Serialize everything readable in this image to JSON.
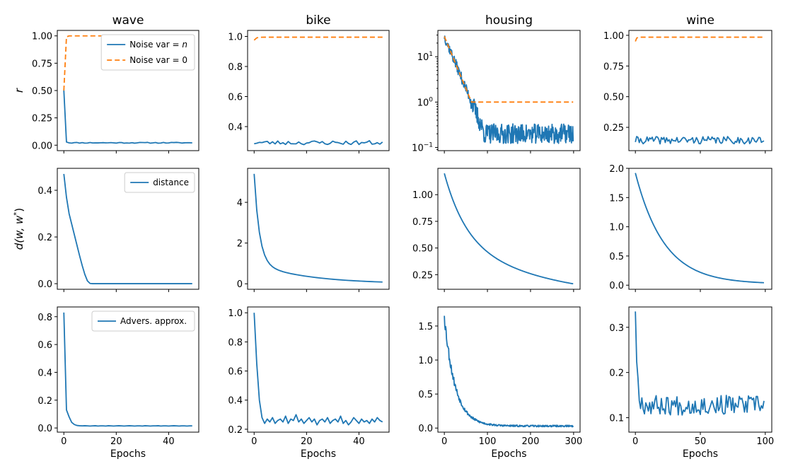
{
  "figure": {
    "xlabel": "Epochs",
    "row_ylabels": [
      "r",
      "d(w, w*)",
      ""
    ],
    "colors": {
      "blue": "#1f77b4",
      "orange": "#ff7f0e"
    }
  },
  "chart_data": [
    {
      "type": "line",
      "row": 0,
      "col": 0,
      "title": "wave",
      "ylabel": "r",
      "xlabel": "",
      "xlim": [
        -2.5,
        51.5
      ],
      "ylim": [
        -0.05,
        1.05
      ],
      "yscale": "linear",
      "xticks": [
        0,
        20,
        40
      ],
      "xtick_labels": [],
      "yticks": [
        0.0,
        0.25,
        0.5,
        0.75,
        1.0
      ],
      "ytick_labels": [
        "0.00",
        "0.25",
        "0.50",
        "0.75",
        "1.00"
      ],
      "legend": {
        "position": "top-right",
        "entries": [
          {
            "label": "Noise var = n",
            "series": 0
          },
          {
            "label": "Noise var = 0",
            "series": 1
          }
        ]
      },
      "series": [
        {
          "name": "Noise var = n",
          "color": "blue",
          "style": "solid",
          "gen": {
            "kind": "decay_noise",
            "n": 50,
            "y0": 0.5,
            "floor": 0.022,
            "k": 4.0,
            "noise": 0.004,
            "seed": 11
          }
        },
        {
          "name": "Noise var = 0",
          "color": "orange",
          "style": "dashed",
          "gen": {
            "kind": "rise",
            "n": 50,
            "y0": 0.5,
            "target": 1.0,
            "k": 4.0
          }
        }
      ]
    },
    {
      "type": "line",
      "row": 0,
      "col": 1,
      "title": "bike",
      "ylabel": "",
      "xlabel": "",
      "xlim": [
        -2.5,
        51.5
      ],
      "ylim": [
        0.24,
        1.04
      ],
      "yscale": "linear",
      "xticks": [
        0,
        20,
        40
      ],
      "xtick_labels": [],
      "yticks": [
        0.4,
        0.6,
        0.8,
        1.0
      ],
      "ytick_labels": [
        "0.4",
        "0.6",
        "0.8",
        "1.0"
      ],
      "series": [
        {
          "name": "Noise var = n",
          "color": "blue",
          "style": "solid",
          "gen": {
            "kind": "noise",
            "n": 50,
            "base": 0.293,
            "noise": 0.014,
            "seed": 23
          }
        },
        {
          "name": "Noise var = 0",
          "color": "orange",
          "style": "dashed",
          "gen": {
            "kind": "rise",
            "n": 50,
            "y0": 0.975,
            "target": 0.995,
            "k": 1.5
          }
        }
      ]
    },
    {
      "type": "line",
      "row": 0,
      "col": 2,
      "title": "housing",
      "ylabel": "",
      "xlabel": "",
      "xlim": [
        -15,
        315
      ],
      "ylim": [
        0.085,
        38
      ],
      "yscale": "log",
      "xticks": [
        0,
        100,
        200,
        300
      ],
      "xtick_labels": [],
      "yticks": [
        0.1,
        1,
        10
      ],
      "ytick_labels": [
        "10^-1",
        "10^0",
        "10^1"
      ],
      "series": [
        {
          "name": "Noise var = n",
          "color": "blue",
          "style": "solid",
          "gen": {
            "kind": "log_decay_noise",
            "n": 300,
            "y0": 28,
            "floor": 0.2,
            "k": 0.051,
            "noise": 0.22,
            "seed": 37
          }
        },
        {
          "name": "Noise var = 0",
          "color": "orange",
          "style": "dashed",
          "gen": {
            "kind": "log_decay_floor",
            "n": 300,
            "y0": 28,
            "floor": 1.0,
            "k": 0.051
          }
        }
      ]
    },
    {
      "type": "line",
      "row": 0,
      "col": 3,
      "title": "wine",
      "ylabel": "",
      "xlabel": "",
      "xlim": [
        -5,
        105
      ],
      "ylim": [
        0.06,
        1.04
      ],
      "yscale": "linear",
      "xticks": [
        0,
        50,
        100
      ],
      "xtick_labels": [],
      "yticks": [
        0.25,
        0.5,
        0.75,
        1.0
      ],
      "ytick_labels": [
        "0.25",
        "0.50",
        "0.75",
        "1.00"
      ],
      "series": [
        {
          "name": "Noise var = n",
          "color": "blue",
          "style": "solid",
          "gen": {
            "kind": "noise",
            "n": 100,
            "base": 0.145,
            "noise": 0.03,
            "seed": 41
          }
        },
        {
          "name": "Noise var = 0",
          "color": "orange",
          "style": "dashed",
          "gen": {
            "kind": "rise",
            "n": 100,
            "y0": 0.95,
            "target": 0.985,
            "k": 1.5
          }
        }
      ]
    },
    {
      "type": "line",
      "row": 1,
      "col": 0,
      "title": "",
      "ylabel": "d(w, w*)",
      "xlabel": "",
      "xlim": [
        -2.5,
        51.5
      ],
      "ylim": [
        -0.024,
        0.494
      ],
      "yscale": "linear",
      "xticks": [
        0,
        20,
        40
      ],
      "xtick_labels": [],
      "yticks": [
        0.0,
        0.2,
        0.4
      ],
      "ytick_labels": [
        "0.0",
        "0.2",
        "0.4"
      ],
      "legend": {
        "position": "top-right",
        "entries": [
          {
            "label": "distance",
            "series": 0
          }
        ]
      },
      "series": [
        {
          "name": "distance",
          "color": "blue",
          "style": "solid",
          "x": [
            0,
            1,
            2,
            3,
            4,
            5,
            6,
            7,
            8,
            9,
            10,
            11,
            12,
            13,
            14,
            15,
            16,
            17,
            18,
            19,
            20,
            21,
            22,
            23,
            24,
            25,
            26,
            27,
            28,
            29,
            30,
            31,
            32,
            33,
            34,
            35,
            36,
            37,
            38,
            39,
            40,
            41,
            42,
            43,
            44,
            45,
            46,
            47,
            48,
            49
          ],
          "y": [
            0.47,
            0.37,
            0.3,
            0.255,
            0.21,
            0.165,
            0.12,
            0.078,
            0.04,
            0.012,
            0.001,
            0,
            0,
            0,
            0,
            0,
            0,
            0,
            0,
            0,
            0,
            0,
            0,
            0,
            0,
            0,
            0,
            0,
            0,
            0,
            0,
            0,
            0,
            0,
            0,
            0,
            0,
            0,
            0,
            0,
            0,
            0,
            0,
            0,
            0,
            0,
            0,
            0,
            0,
            0
          ]
        }
      ]
    },
    {
      "type": "line",
      "row": 1,
      "col": 1,
      "title": "",
      "ylabel": "",
      "xlabel": "",
      "xlim": [
        -2.5,
        51.5
      ],
      "ylim": [
        -0.27,
        5.67
      ],
      "yscale": "linear",
      "xticks": [
        0,
        20,
        40
      ],
      "xtick_labels": [],
      "yticks": [
        0,
        2,
        4
      ],
      "ytick_labels": [
        "0",
        "2",
        "4"
      ],
      "series": [
        {
          "name": "distance",
          "color": "blue",
          "style": "solid",
          "gen": {
            "kind": "two_exp",
            "n": 50,
            "a": 4.4,
            "k1": 0.5,
            "b": 1.0,
            "k2": 0.05
          }
        }
      ]
    },
    {
      "type": "line",
      "row": 1,
      "col": 2,
      "title": "",
      "ylabel": "",
      "xlabel": "",
      "xlim": [
        -15,
        315
      ],
      "ylim": [
        0.113,
        1.247
      ],
      "yscale": "linear",
      "xticks": [
        0,
        100,
        200,
        300
      ],
      "xtick_labels": [],
      "yticks": [
        0.25,
        0.5,
        0.75,
        1.0
      ],
      "ytick_labels": [
        "0.25",
        "0.50",
        "0.75",
        "1.00"
      ],
      "series": [
        {
          "name": "distance",
          "color": "blue",
          "style": "solid",
          "gen": {
            "kind": "two_exp",
            "n": 300,
            "a": 0.62,
            "k1": 0.02,
            "b": 0.58,
            "k2": 0.00425
          }
        }
      ]
    },
    {
      "type": "line",
      "row": 1,
      "col": 3,
      "title": "",
      "ylabel": "",
      "xlabel": "",
      "xlim": [
        -5,
        105
      ],
      "ylim": [
        -0.07,
        2.0
      ],
      "yscale": "linear",
      "xticks": [
        0,
        50,
        100
      ],
      "xtick_labels": [],
      "yticks": [
        0.0,
        0.5,
        1.0,
        1.5,
        2.0
      ],
      "ytick_labels": [
        "0.0",
        "0.5",
        "1.0",
        "1.5",
        "2.0"
      ],
      "series": [
        {
          "name": "distance",
          "color": "blue",
          "style": "solid",
          "gen": {
            "kind": "two_exp",
            "n": 100,
            "a": 1.9,
            "k1": 0.045,
            "b": 0.0,
            "k2": 0.0,
            "offset": 0.02
          }
        }
      ]
    },
    {
      "type": "line",
      "row": 2,
      "col": 0,
      "title": "",
      "ylabel": "",
      "xlabel": "Epochs",
      "xlim": [
        -2.5,
        51.5
      ],
      "ylim": [
        -0.03,
        0.87
      ],
      "yscale": "linear",
      "xticks": [
        0,
        20,
        40
      ],
      "xtick_labels": [
        "0",
        "20",
        "40"
      ],
      "yticks": [
        0.0,
        0.2,
        0.4,
        0.6,
        0.8
      ],
      "ytick_labels": [
        "0.0",
        "0.2",
        "0.4",
        "0.6",
        "0.8"
      ],
      "legend": {
        "position": "top-right",
        "entries": [
          {
            "label": "Advers. approx.",
            "series": 0
          }
        ]
      },
      "series": [
        {
          "name": "Advers. approx.",
          "color": "blue",
          "style": "solid",
          "x": [
            0,
            1,
            2,
            3,
            4,
            5,
            6,
            7,
            8,
            9,
            10,
            11,
            12,
            13,
            14,
            15,
            16,
            17,
            18,
            19,
            20,
            21,
            22,
            23,
            24,
            25,
            26,
            27,
            28,
            29,
            30,
            31,
            32,
            33,
            34,
            35,
            36,
            37,
            38,
            39,
            40,
            41,
            42,
            43,
            44,
            45,
            46,
            47,
            48,
            49
          ],
          "y": [
            0.83,
            0.13,
            0.08,
            0.04,
            0.025,
            0.018,
            0.016,
            0.015,
            0.016,
            0.015,
            0.014,
            0.015,
            0.016,
            0.014,
            0.015,
            0.015,
            0.014,
            0.016,
            0.015,
            0.014,
            0.015,
            0.016,
            0.015,
            0.014,
            0.015,
            0.016,
            0.015,
            0.014,
            0.015,
            0.015,
            0.014,
            0.016,
            0.015,
            0.014,
            0.015,
            0.015,
            0.016,
            0.014,
            0.015,
            0.015,
            0.014,
            0.015,
            0.016,
            0.015,
            0.014,
            0.015,
            0.015,
            0.014,
            0.015,
            0.015
          ]
        }
      ]
    },
    {
      "type": "line",
      "row": 2,
      "col": 1,
      "title": "",
      "ylabel": "",
      "xlabel": "Epochs",
      "xlim": [
        -2.5,
        51.5
      ],
      "ylim": [
        0.18,
        1.04
      ],
      "yscale": "linear",
      "xticks": [
        0,
        20,
        40
      ],
      "xtick_labels": [
        "0",
        "20",
        "40"
      ],
      "yticks": [
        0.2,
        0.4,
        0.6,
        0.8,
        1.0
      ],
      "ytick_labels": [
        "0.2",
        "0.4",
        "0.6",
        "0.8",
        "1.0"
      ],
      "series": [
        {
          "name": "Advers. approx.",
          "color": "blue",
          "style": "solid",
          "x": [
            0,
            1,
            2,
            3,
            4,
            5,
            6,
            7,
            8,
            9,
            10,
            11,
            12,
            13,
            14,
            15,
            16,
            17,
            18,
            19,
            20,
            21,
            22,
            23,
            24,
            25,
            26,
            27,
            28,
            29,
            30,
            31,
            32,
            33,
            34,
            35,
            36,
            37,
            38,
            39,
            40,
            41,
            42,
            43,
            44,
            45,
            46,
            47,
            48,
            49
          ],
          "y": [
            1.0,
            0.65,
            0.4,
            0.28,
            0.24,
            0.27,
            0.25,
            0.28,
            0.24,
            0.26,
            0.27,
            0.25,
            0.29,
            0.24,
            0.27,
            0.26,
            0.3,
            0.25,
            0.27,
            0.24,
            0.26,
            0.28,
            0.25,
            0.27,
            0.23,
            0.26,
            0.27,
            0.25,
            0.28,
            0.24,
            0.26,
            0.27,
            0.25,
            0.29,
            0.24,
            0.26,
            0.23,
            0.25,
            0.28,
            0.26,
            0.24,
            0.27,
            0.25,
            0.26,
            0.24,
            0.27,
            0.25,
            0.28,
            0.26,
            0.25
          ]
        }
      ]
    },
    {
      "type": "line",
      "row": 2,
      "col": 2,
      "title": "",
      "ylabel": "",
      "xlabel": "Epochs",
      "xlim": [
        -15,
        315
      ],
      "ylim": [
        -0.06,
        1.78
      ],
      "yscale": "linear",
      "xticks": [
        0,
        100,
        200,
        300
      ],
      "xtick_labels": [
        "0",
        "100",
        "200",
        "300"
      ],
      "yticks": [
        0.0,
        0.5,
        1.0,
        1.5
      ],
      "ytick_labels": [
        "0.0",
        "0.5",
        "1.0",
        "1.5"
      ],
      "series": [
        {
          "name": "Advers. approx.",
          "color": "blue",
          "style": "solid",
          "gen": {
            "kind": "decay_noise",
            "n": 300,
            "y0": 1.65,
            "floor": 0.03,
            "k": 0.04,
            "noise": 0.012,
            "seed": 53,
            "rel_noise": 0.06
          }
        }
      ]
    },
    {
      "type": "line",
      "row": 2,
      "col": 3,
      "title": "",
      "ylabel": "",
      "xlabel": "Epochs",
      "xlim": [
        -5,
        105
      ],
      "ylim": [
        0.068,
        0.345
      ],
      "yscale": "linear",
      "xticks": [
        0,
        50,
        100
      ],
      "xtick_labels": [
        "0",
        "50",
        "100"
      ],
      "yticks": [
        0.1,
        0.2,
        0.3
      ],
      "ytick_labels": [
        "0.1",
        "0.2",
        "0.3"
      ],
      "series": [
        {
          "name": "Advers. approx.",
          "color": "blue",
          "style": "solid",
          "gen": {
            "kind": "decay_noise",
            "n": 100,
            "y0": 0.335,
            "floor": 0.128,
            "k": 0.7,
            "noise": 0.022,
            "seed": 67
          }
        }
      ]
    }
  ]
}
